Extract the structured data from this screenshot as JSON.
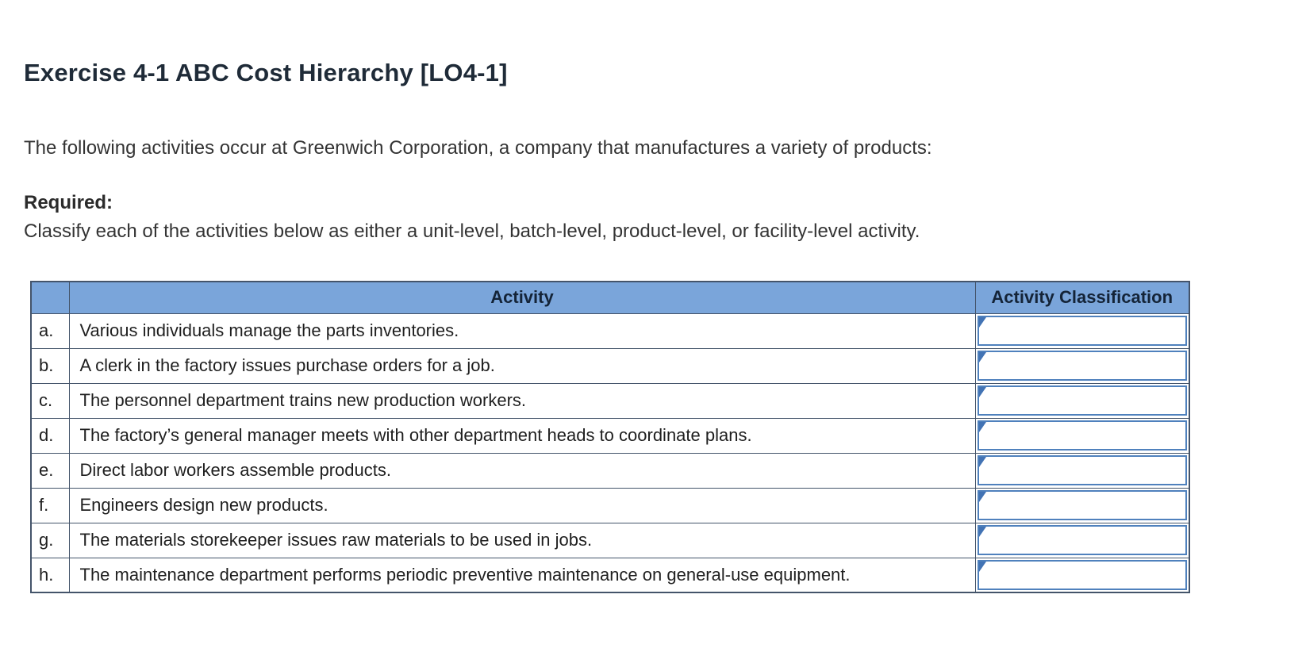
{
  "page": {
    "title": "Exercise 4-1 ABC Cost Hierarchy [LO4-1]",
    "intro": "The following activities occur at Greenwich Corporation, a company that manufactures a variety of products:",
    "required_label": "Required:",
    "instruction": "Classify each of the activities below as either a unit-level, batch-level, product-level, or facility-level activity."
  },
  "table": {
    "header": {
      "activity": "Activity",
      "classification": "Activity Classification"
    },
    "rows": [
      {
        "letter": "a.",
        "activity": "Various individuals manage the parts inventories.",
        "classification": ""
      },
      {
        "letter": "b.",
        "activity": "A clerk in the factory issues purchase orders for a job.",
        "classification": ""
      },
      {
        "letter": "c.",
        "activity": "The personnel department trains new production workers.",
        "classification": ""
      },
      {
        "letter": "d.",
        "activity": "The factory’s general manager meets with other department heads to coordinate plans.",
        "classification": ""
      },
      {
        "letter": "e.",
        "activity": "Direct labor workers assemble products.",
        "classification": ""
      },
      {
        "letter": "f.",
        "activity": "Engineers design new products.",
        "classification": ""
      },
      {
        "letter": "g.",
        "activity": "The materials storekeeper issues raw materials to be used in jobs.",
        "classification": ""
      },
      {
        "letter": "h.",
        "activity": "The maintenance department performs periodic preventive maintenance on general-use equipment.",
        "classification": ""
      }
    ]
  },
  "colors": {
    "header_bg": "#7aa5da",
    "grid_border": "#44546a",
    "dropdown_border": "#4f81bd",
    "dropdown_marker": "#4273b4"
  }
}
